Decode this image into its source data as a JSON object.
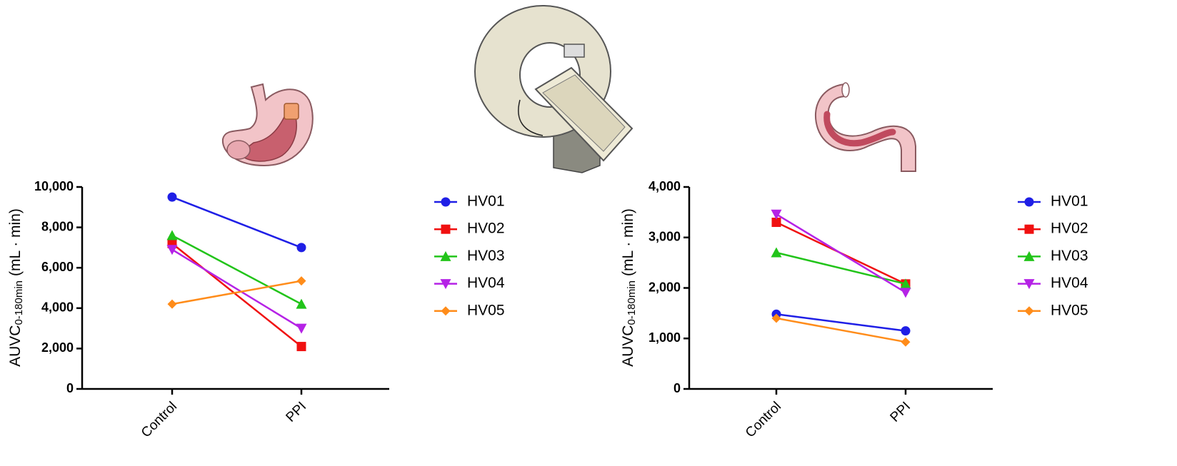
{
  "chart_data": [
    {
      "type": "line",
      "y_label": {
        "main": "AUVC",
        "subscript": "0-180min",
        "unit": "(mL · min)"
      },
      "categories": [
        "Control",
        "PPI"
      ],
      "ylim": [
        0,
        10000
      ],
      "yticks": [
        0,
        {
          "value": 2000,
          "label": "2,000"
        },
        {
          "value": 4000,
          "label": "4,000"
        },
        {
          "value": 6000,
          "label": "6,000"
        },
        {
          "value": 8000,
          "label": "8,000"
        },
        {
          "value": 10000,
          "label": "10,000"
        }
      ],
      "legend": "right",
      "series": [
        {
          "name": "HV01",
          "color": "#1f1fe6",
          "marker": "circle",
          "values": [
            9500,
            7000
          ]
        },
        {
          "name": "HV02",
          "color": "#f01010",
          "marker": "square",
          "values": [
            7200,
            2100
          ]
        },
        {
          "name": "HV03",
          "color": "#22c41a",
          "marker": "triangle-up",
          "values": [
            7600,
            4200
          ]
        },
        {
          "name": "HV04",
          "color": "#b522e6",
          "marker": "triangle-down",
          "values": [
            6900,
            3000
          ]
        },
        {
          "name": "HV05",
          "color": "#ff8c1a",
          "marker": "diamond",
          "values": [
            4200,
            5350
          ]
        }
      ]
    },
    {
      "type": "line",
      "y_label": {
        "main": "AUVC",
        "subscript": "0-180min",
        "unit": "(mL · min)"
      },
      "categories": [
        "Control",
        "PPI"
      ],
      "ylim": [
        0,
        4000
      ],
      "yticks": [
        0,
        {
          "value": 1000,
          "label": "1,000"
        },
        {
          "value": 2000,
          "label": "2,000"
        },
        {
          "value": 3000,
          "label": "3,000"
        },
        {
          "value": 4000,
          "label": "4,000"
        }
      ],
      "legend": "right",
      "series": [
        {
          "name": "HV01",
          "color": "#1f1fe6",
          "marker": "circle",
          "values": [
            1480,
            1150
          ]
        },
        {
          "name": "HV02",
          "color": "#f01010",
          "marker": "square",
          "values": [
            3300,
            2080
          ]
        },
        {
          "name": "HV03",
          "color": "#22c41a",
          "marker": "triangle-up",
          "values": [
            2700,
            2080
          ]
        },
        {
          "name": "HV04",
          "color": "#b522e6",
          "marker": "triangle-down",
          "values": [
            3460,
            1910
          ]
        },
        {
          "name": "HV05",
          "color": "#ff8c1a",
          "marker": "diamond",
          "values": [
            1400,
            930
          ]
        }
      ]
    }
  ]
}
